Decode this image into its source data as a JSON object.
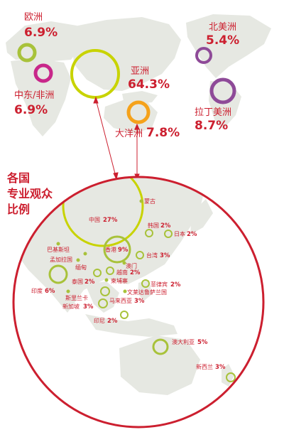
{
  "colors": {
    "accent_red": "#cc1f2f",
    "land": "#e6e8e2",
    "green": "#a8c23a",
    "lime": "#c8d300",
    "magenta": "#c8278a",
    "orange": "#f5a21b",
    "purple": "#8e4a98"
  },
  "heading_lines": [
    "各国",
    "专业观众",
    "比例"
  ],
  "regions": [
    {
      "name": "欧洲",
      "value": "6.9%"
    },
    {
      "name": "中东/非洲",
      "value": "6.9%"
    },
    {
      "name": "亚洲",
      "value": "64.3%"
    },
    {
      "name": "大洋洲",
      "value": "7.8%"
    },
    {
      "name": "北美洲",
      "value": "5.4%"
    },
    {
      "name": "拉丁美洲",
      "value": "8.7%"
    }
  ],
  "countries": [
    {
      "name": "蒙古",
      "value": ""
    },
    {
      "name": "中国",
      "value": "27%"
    },
    {
      "name": "韩国",
      "value": "2%"
    },
    {
      "name": "日本",
      "value": "2%"
    },
    {
      "name": "巴基斯坦",
      "value": ""
    },
    {
      "name": "孟加拉国",
      "value": ""
    },
    {
      "name": "缅甸",
      "value": ""
    },
    {
      "name": "香港",
      "value": "9%"
    },
    {
      "name": "台湾",
      "value": "3%"
    },
    {
      "name": "澳门",
      "value": ""
    },
    {
      "name": "越南",
      "value": "2%"
    },
    {
      "name": "印度",
      "value": "6%"
    },
    {
      "name": "泰国",
      "value": "2%"
    },
    {
      "name": "柬埔寨",
      "value": ""
    },
    {
      "name": "菲律宾",
      "value": "2%"
    },
    {
      "name": "斯里兰卡",
      "value": ""
    },
    {
      "name": "文莱达鲁萨兰国",
      "value": ""
    },
    {
      "name": "马来西亚",
      "value": "3%"
    },
    {
      "name": "新加坡",
      "value": "3%"
    },
    {
      "name": "印尼",
      "value": "2%"
    },
    {
      "name": "澳大利亚",
      "value": "5%"
    },
    {
      "name": "新西兰",
      "value": "3%"
    }
  ]
}
